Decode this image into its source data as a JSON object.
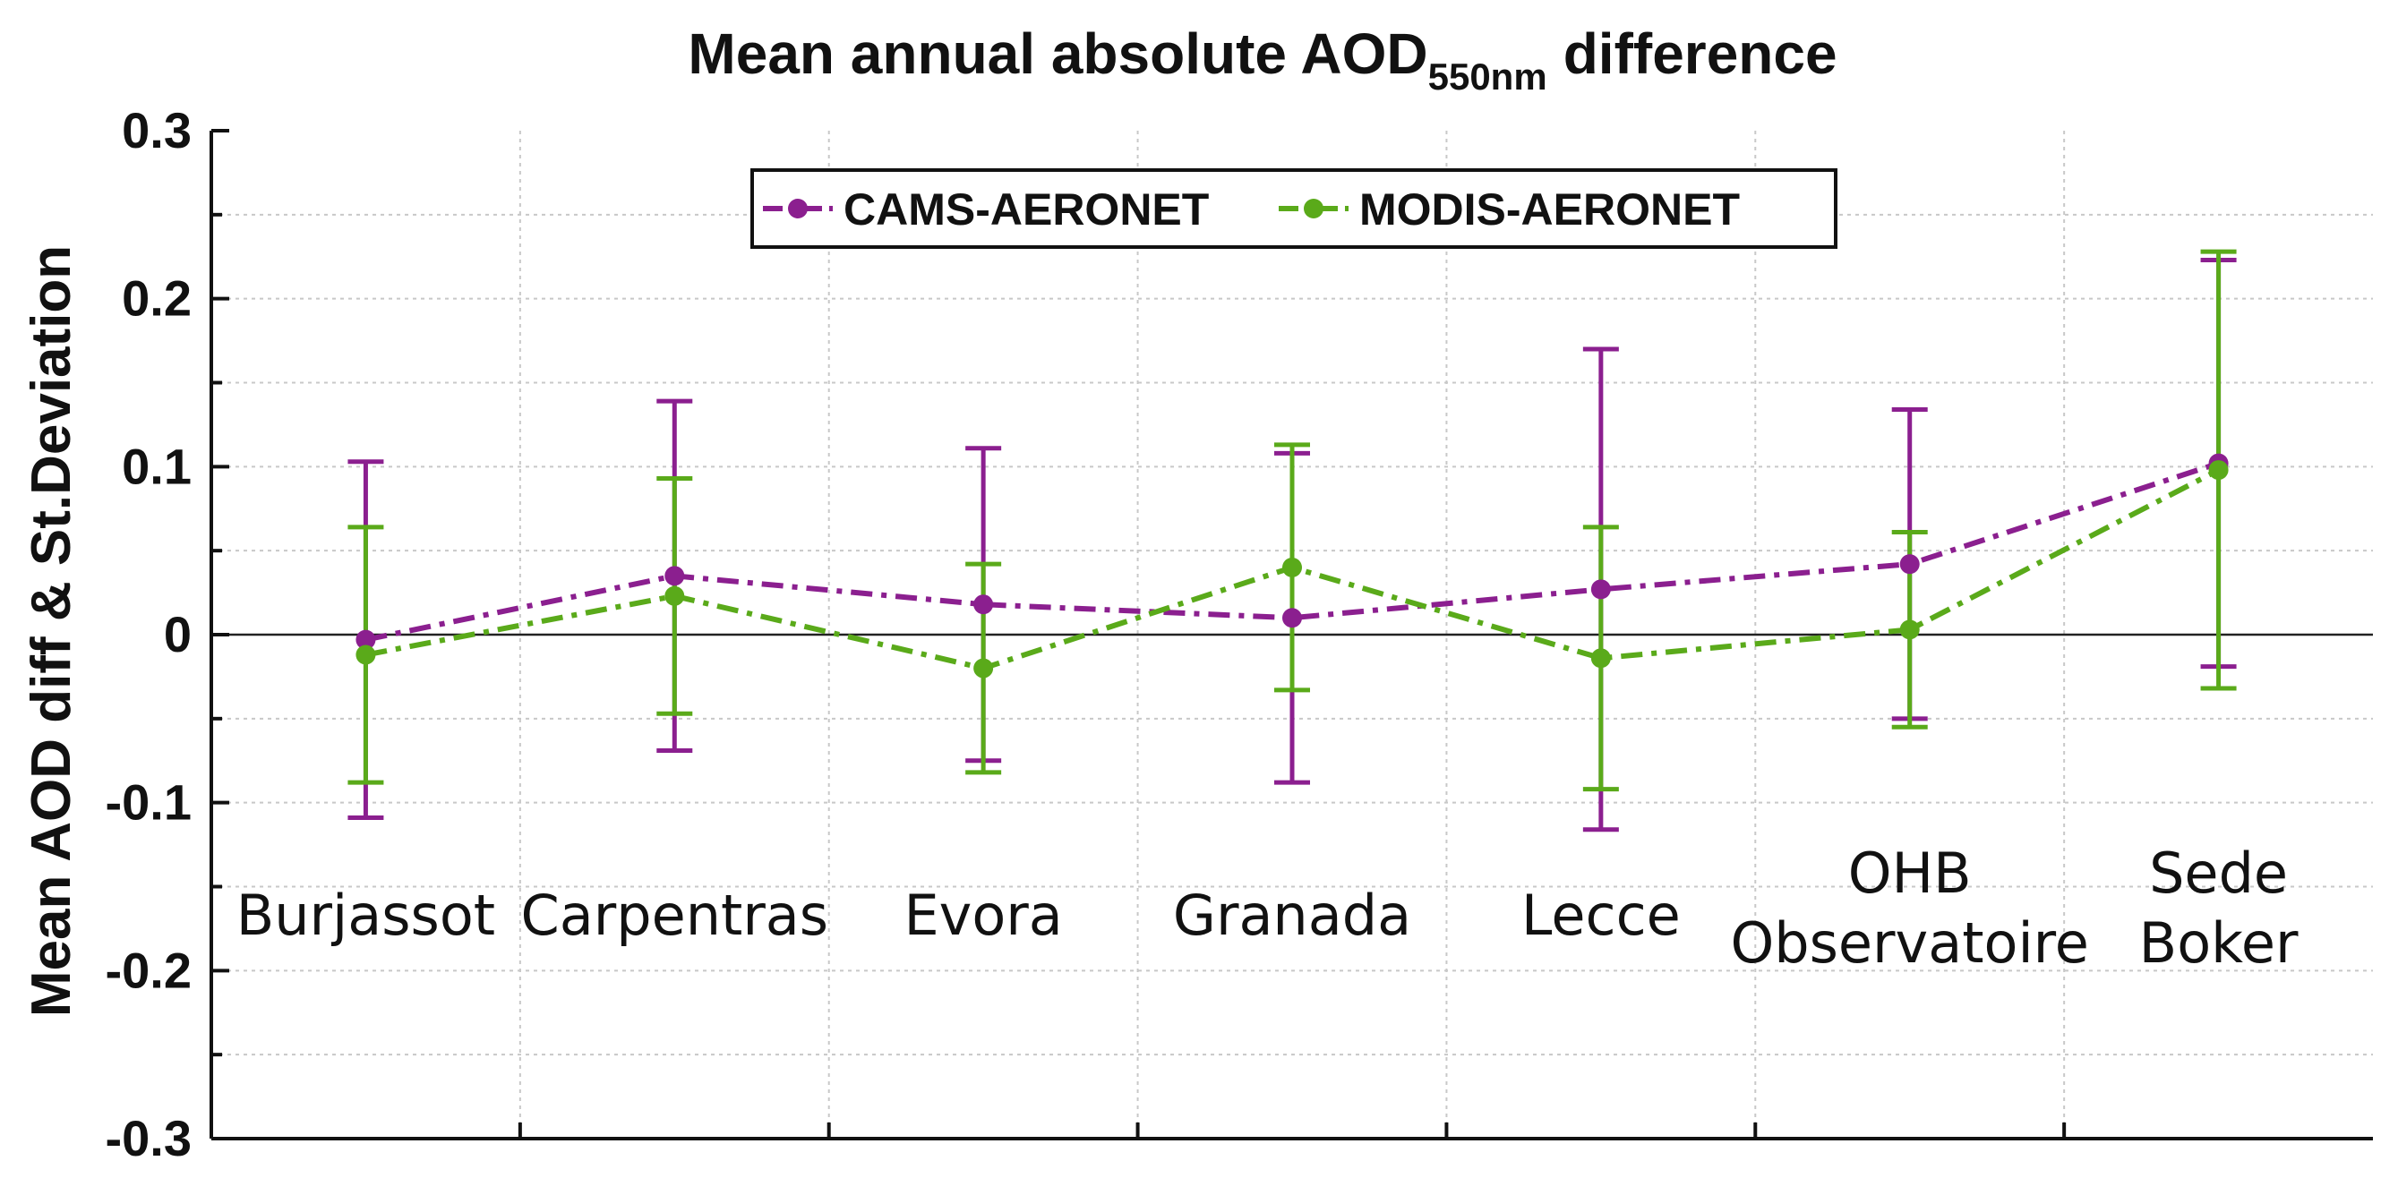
{
  "chart_data": {
    "type": "line",
    "title": "Mean annual absolute AOD",
    "title_subscript": "550nm",
    "title_suffix": "difference",
    "ylabel": "Mean AOD diff & St.Deviation",
    "xlabel": "",
    "ylim": [
      -0.3,
      0.3
    ],
    "yticks": [
      {
        "value": 0.3,
        "label": "0.3"
      },
      {
        "value": 0.2,
        "label": "0.2"
      },
      {
        "value": 0.1,
        "label": "0.1"
      },
      {
        "value": 0,
        "label": "0"
      },
      {
        "value": -0.1,
        "label": "-0.1"
      },
      {
        "value": -0.2,
        "label": "-0.2"
      },
      {
        "value": -0.3,
        "label": "-0.3"
      }
    ],
    "grid": true,
    "legend_position": "top-center",
    "categories": [
      {
        "lines": [
          "Burjassot"
        ]
      },
      {
        "lines": [
          "Carpentras"
        ]
      },
      {
        "lines": [
          "Evora"
        ]
      },
      {
        "lines": [
          "Granada"
        ]
      },
      {
        "lines": [
          "Lecce"
        ]
      },
      {
        "lines": [
          "OHB",
          "Observatoire"
        ]
      },
      {
        "lines": [
          "Sede",
          "Boker"
        ]
      }
    ],
    "series": [
      {
        "name": "CAMS-AERONET",
        "color": "#8B1F8F",
        "values": [
          -0.003,
          0.035,
          0.018,
          0.01,
          0.027,
          0.042,
          0.102
        ],
        "std": [
          0.106,
          0.104,
          0.093,
          0.098,
          0.143,
          0.092,
          0.121
        ]
      },
      {
        "name": "MODIS-AERONET",
        "color": "#5AAA1A",
        "values": [
          -0.012,
          0.023,
          -0.02,
          0.04,
          -0.014,
          0.003,
          0.098
        ],
        "std": [
          0.076,
          0.07,
          0.062,
          0.073,
          0.078,
          0.058,
          0.13
        ]
      }
    ]
  }
}
